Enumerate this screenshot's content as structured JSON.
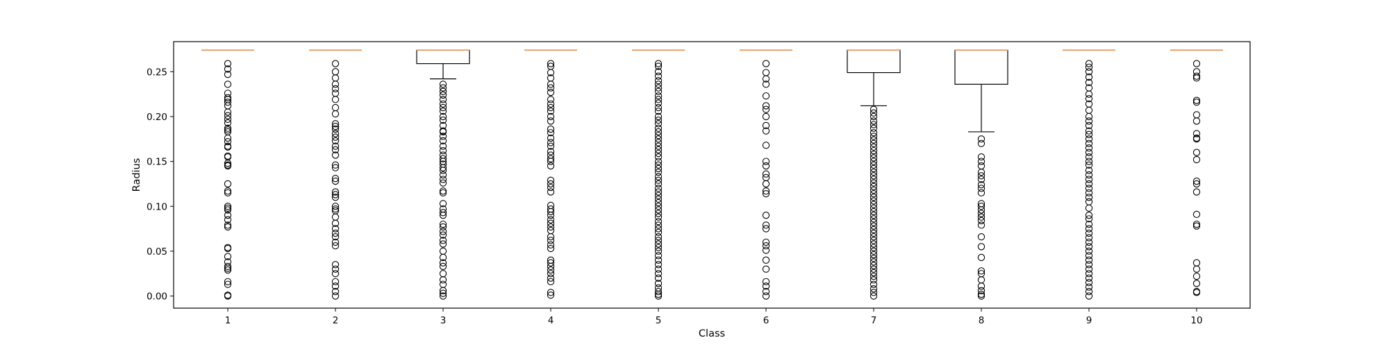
{
  "chart_data": {
    "type": "boxplot",
    "xlabel": "Class",
    "ylabel": "Radius",
    "ylim": [
      -0.0135,
      0.2835
    ],
    "yticks": [
      0.0,
      0.05,
      0.1,
      0.15,
      0.2,
      0.25
    ],
    "ytick_labels": [
      "0.00",
      "0.05",
      "0.10",
      "0.15",
      "0.20",
      "0.25"
    ],
    "categories": [
      "1",
      "2",
      "3",
      "4",
      "5",
      "6",
      "7",
      "8",
      "9",
      "10"
    ],
    "grid": false,
    "colors": {
      "box": "#000000",
      "median": "#e6a16a",
      "flier": "#000000",
      "frame": "#000000"
    },
    "boxes": [
      {
        "label": "1",
        "q1": 0.274,
        "median": 0.274,
        "q3": 0.274,
        "whisker_low": 0.274,
        "whisker_high": 0.274,
        "fliers": [
          0.259,
          0.253,
          0.247,
          0.236,
          0.226,
          0.221,
          0.219,
          0.216,
          0.212,
          0.205,
          0.201,
          0.197,
          0.193,
          0.187,
          0.185,
          0.183,
          0.176,
          0.172,
          0.167,
          0.166,
          0.156,
          0.155,
          0.148,
          0.146,
          0.145,
          0.125,
          0.117,
          0.115,
          0.1,
          0.098,
          0.096,
          0.09,
          0.085,
          0.079,
          0.077,
          0.054,
          0.053,
          0.044,
          0.038,
          0.033,
          0.031,
          0.029,
          0.016,
          0.013,
          0.001,
          0.0
        ]
      },
      {
        "label": "2",
        "q1": 0.274,
        "median": 0.274,
        "q3": 0.274,
        "whisker_low": 0.274,
        "whisker_high": 0.274,
        "fliers": [
          0.259,
          0.25,
          0.243,
          0.236,
          0.231,
          0.226,
          0.219,
          0.21,
          0.203,
          0.192,
          0.189,
          0.186,
          0.181,
          0.177,
          0.173,
          0.167,
          0.163,
          0.157,
          0.146,
          0.143,
          0.131,
          0.128,
          0.116,
          0.113,
          0.11,
          0.1,
          0.097,
          0.095,
          0.088,
          0.081,
          0.075,
          0.07,
          0.066,
          0.06,
          0.056,
          0.035,
          0.03,
          0.025,
          0.016,
          0.011,
          0.005,
          0.0
        ]
      },
      {
        "label": "3",
        "q1": 0.259,
        "median": 0.274,
        "q3": 0.274,
        "whisker_low": 0.242,
        "whisker_high": 0.274,
        "fliers": [
          0.236,
          0.232,
          0.228,
          0.224,
          0.219,
          0.214,
          0.21,
          0.206,
          0.2,
          0.196,
          0.19,
          0.184,
          0.183,
          0.178,
          0.173,
          0.167,
          0.162,
          0.157,
          0.153,
          0.15,
          0.147,
          0.143,
          0.14,
          0.135,
          0.13,
          0.126,
          0.117,
          0.115,
          0.103,
          0.097,
          0.093,
          0.09,
          0.08,
          0.077,
          0.072,
          0.068,
          0.062,
          0.058,
          0.05,
          0.043,
          0.037,
          0.033,
          0.025,
          0.018,
          0.013,
          0.006,
          0.003,
          0.0
        ]
      },
      {
        "label": "4",
        "q1": 0.274,
        "median": 0.274,
        "q3": 0.274,
        "whisker_low": 0.274,
        "whisker_high": 0.274,
        "fliers": [
          0.259,
          0.256,
          0.249,
          0.243,
          0.236,
          0.232,
          0.227,
          0.219,
          0.214,
          0.21,
          0.206,
          0.2,
          0.195,
          0.186,
          0.182,
          0.176,
          0.171,
          0.167,
          0.161,
          0.157,
          0.153,
          0.15,
          0.145,
          0.129,
          0.125,
          0.121,
          0.116,
          0.101,
          0.097,
          0.094,
          0.09,
          0.085,
          0.081,
          0.077,
          0.073,
          0.066,
          0.062,
          0.057,
          0.053,
          0.04,
          0.037,
          0.033,
          0.029,
          0.025,
          0.02,
          0.016,
          0.004,
          0.001
        ]
      },
      {
        "label": "5",
        "q1": 0.274,
        "median": 0.274,
        "q3": 0.274,
        "whisker_low": 0.274,
        "whisker_high": 0.274,
        "fliers": [
          0.259,
          0.256,
          0.25,
          0.245,
          0.24,
          0.236,
          0.232,
          0.228,
          0.223,
          0.219,
          0.215,
          0.21,
          0.206,
          0.2,
          0.196,
          0.192,
          0.187,
          0.183,
          0.179,
          0.175,
          0.171,
          0.167,
          0.163,
          0.159,
          0.155,
          0.15,
          0.146,
          0.142,
          0.138,
          0.133,
          0.129,
          0.125,
          0.12,
          0.116,
          0.112,
          0.108,
          0.104,
          0.1,
          0.096,
          0.092,
          0.088,
          0.083,
          0.079,
          0.075,
          0.071,
          0.066,
          0.062,
          0.058,
          0.054,
          0.05,
          0.045,
          0.04,
          0.035,
          0.03,
          0.025,
          0.02,
          0.014,
          0.009,
          0.005,
          0.002,
          0.0
        ]
      },
      {
        "label": "6",
        "q1": 0.274,
        "median": 0.274,
        "q3": 0.274,
        "whisker_low": 0.274,
        "whisker_high": 0.274,
        "fliers": [
          0.259,
          0.249,
          0.242,
          0.236,
          0.223,
          0.212,
          0.208,
          0.2,
          0.19,
          0.184,
          0.168,
          0.15,
          0.145,
          0.136,
          0.132,
          0.125,
          0.117,
          0.114,
          0.09,
          0.079,
          0.075,
          0.06,
          0.056,
          0.051,
          0.04,
          0.03,
          0.016,
          0.011,
          0.005,
          0.0
        ]
      },
      {
        "label": "7",
        "q1": 0.249,
        "median": 0.274,
        "q3": 0.274,
        "whisker_low": 0.212,
        "whisker_high": 0.274,
        "fliers": [
          0.208,
          0.204,
          0.2,
          0.195,
          0.191,
          0.187,
          0.182,
          0.178,
          0.174,
          0.17,
          0.166,
          0.162,
          0.158,
          0.154,
          0.15,
          0.146,
          0.142,
          0.138,
          0.134,
          0.13,
          0.126,
          0.122,
          0.118,
          0.114,
          0.11,
          0.106,
          0.102,
          0.098,
          0.094,
          0.09,
          0.086,
          0.082,
          0.078,
          0.074,
          0.07,
          0.066,
          0.062,
          0.058,
          0.054,
          0.05,
          0.046,
          0.042,
          0.038,
          0.034,
          0.03,
          0.026,
          0.022,
          0.018,
          0.013,
          0.008,
          0.004,
          0.0
        ]
      },
      {
        "label": "8",
        "q1": 0.236,
        "median": 0.274,
        "q3": 0.274,
        "whisker_low": 0.183,
        "whisker_high": 0.274,
        "fliers": [
          0.175,
          0.17,
          0.155,
          0.15,
          0.145,
          0.138,
          0.134,
          0.13,
          0.124,
          0.12,
          0.115,
          0.103,
          0.1,
          0.096,
          0.092,
          0.088,
          0.084,
          0.079,
          0.066,
          0.055,
          0.043,
          0.028,
          0.025,
          0.018,
          0.011,
          0.006,
          0.002,
          0.0
        ]
      },
      {
        "label": "9",
        "q1": 0.274,
        "median": 0.274,
        "q3": 0.274,
        "whisker_low": 0.274,
        "whisker_high": 0.274,
        "fliers": [
          0.259,
          0.255,
          0.25,
          0.244,
          0.238,
          0.232,
          0.225,
          0.22,
          0.214,
          0.207,
          0.2,
          0.195,
          0.19,
          0.184,
          0.18,
          0.175,
          0.17,
          0.165,
          0.16,
          0.155,
          0.15,
          0.146,
          0.14,
          0.135,
          0.13,
          0.125,
          0.12,
          0.115,
          0.11,
          0.105,
          0.098,
          0.09,
          0.086,
          0.08,
          0.075,
          0.07,
          0.065,
          0.06,
          0.055,
          0.05,
          0.045,
          0.04,
          0.035,
          0.03,
          0.025,
          0.02,
          0.015,
          0.01,
          0.005,
          0.0
        ]
      },
      {
        "label": "10",
        "q1": 0.274,
        "median": 0.274,
        "q3": 0.274,
        "whisker_low": 0.274,
        "whisker_high": 0.274,
        "fliers": [
          0.259,
          0.25,
          0.245,
          0.243,
          0.218,
          0.216,
          0.202,
          0.195,
          0.181,
          0.176,
          0.175,
          0.16,
          0.152,
          0.128,
          0.125,
          0.116,
          0.091,
          0.08,
          0.078,
          0.037,
          0.03,
          0.022,
          0.014,
          0.005,
          0.004
        ]
      }
    ]
  }
}
